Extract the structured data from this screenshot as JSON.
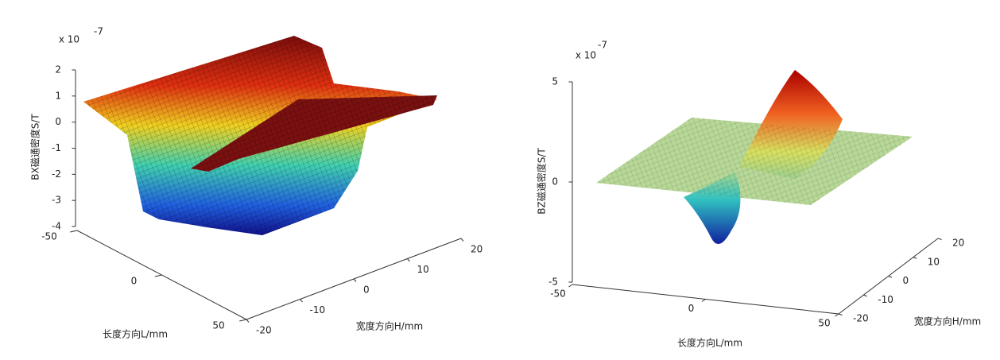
{
  "chart_data": [
    {
      "type": "surface",
      "zlabel": "BX磁通密度S/T",
      "xlabel": "长度方向L/mm",
      "ylabel": "宽度方向H/mm",
      "exponent_base": "x 10",
      "exponent": "-7",
      "xlim": [
        -50,
        50
      ],
      "xticks": [
        -50,
        0,
        50
      ],
      "ylim": [
        -20,
        20
      ],
      "yticks": [
        -20,
        -10,
        0,
        10,
        20
      ],
      "zlim": [
        -4,
        2
      ],
      "zticks": [
        -4,
        -3,
        -2,
        -1,
        0,
        1,
        2
      ]
    },
    {
      "type": "surface",
      "zlabel": "BZ磁通密度S/T",
      "xlabel": "长度方向L/mm",
      "ylabel": "宽度方向H/mm",
      "exponent_base": "x 10",
      "exponent": "-7",
      "xlim": [
        -50,
        50
      ],
      "xticks": [
        -50,
        0,
        50
      ],
      "ylim": [
        -20,
        20
      ],
      "yticks": [
        -20,
        -10,
        0,
        10,
        20
      ],
      "zlim": [
        -5,
        5
      ],
      "zticks": [
        -5,
        0,
        5
      ]
    }
  ]
}
